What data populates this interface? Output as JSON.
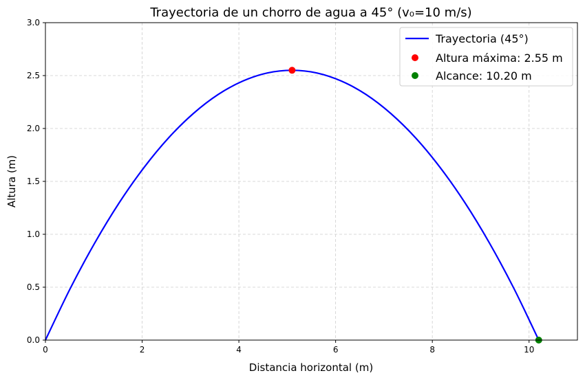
{
  "chart_data": {
    "type": "line",
    "title": "Trayectoria de un chorro de agua a 45° (v₀=10 m/s)",
    "xlabel": "Distancia horizontal (m)",
    "ylabel": "Altura (m)",
    "xlim": [
      0,
      11
    ],
    "ylim": [
      0,
      3
    ],
    "x_ticks": [
      0,
      2,
      4,
      6,
      8,
      10
    ],
    "x_tick_labels": [
      "0",
      "2",
      "4",
      "6",
      "8",
      "10"
    ],
    "y_ticks": [
      0,
      0.5,
      1,
      1.5,
      2,
      2.5,
      3
    ],
    "y_tick_labels": [
      "0.0",
      "0.5",
      "1.0",
      "1.5",
      "2.0",
      "2.5",
      "3.0"
    ],
    "grid": true,
    "legend_position": "top-right",
    "series": [
      {
        "name": "Trayectoria (45°)",
        "type": "line",
        "color": "#0000ff",
        "x": [
          0,
          0.51,
          1.02,
          1.53,
          2.04,
          2.55,
          3.06,
          3.57,
          4.08,
          4.59,
          5.1,
          5.61,
          6.12,
          6.63,
          7.14,
          7.65,
          8.16,
          8.67,
          9.18,
          9.69,
          10.2
        ],
        "y": [
          0,
          0.485,
          0.918,
          1.301,
          1.632,
          1.913,
          2.142,
          2.321,
          2.448,
          2.525,
          2.55,
          2.525,
          2.448,
          2.321,
          2.142,
          1.913,
          1.632,
          1.301,
          0.918,
          0.485,
          0
        ]
      },
      {
        "name": "Altura máxima: 2.55 m",
        "type": "scatter",
        "color": "#ff0000",
        "x": [
          5.1
        ],
        "y": [
          2.55
        ]
      },
      {
        "name": "Alcance: 10.20 m",
        "type": "scatter",
        "color": "#008000",
        "x": [
          10.2
        ],
        "y": [
          0
        ]
      }
    ]
  }
}
